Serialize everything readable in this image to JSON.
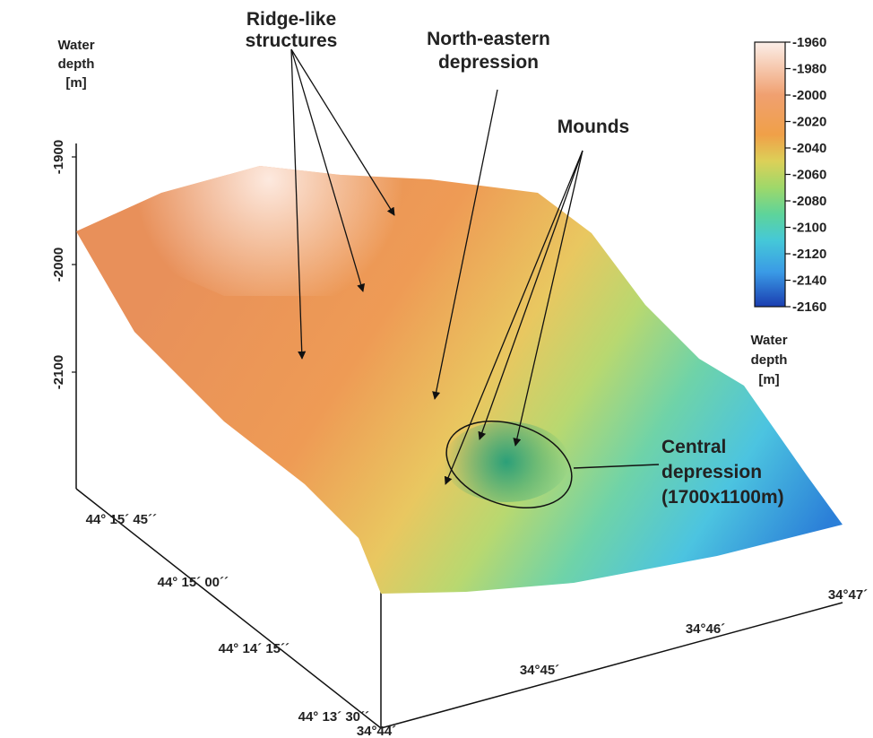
{
  "annotations": {
    "ridges": [
      "Ridge-like",
      "structures"
    ],
    "north_eastern_depression": [
      "North-eastern",
      "depression"
    ],
    "mounds": "Mounds",
    "central_depression": [
      "Central",
      "depression",
      "(1700x1100m)"
    ]
  },
  "depth_axis": {
    "title": [
      "Water",
      "depth",
      "[m]"
    ],
    "ticks": [
      -1900,
      -2000,
      -2100
    ]
  },
  "colorbar": {
    "title": [
      "Water",
      "depth",
      "[m]"
    ],
    "ticks": [
      -1960,
      -1980,
      -2000,
      -2020,
      -2040,
      -2060,
      -2080,
      -2100,
      -2120,
      -2140,
      -2160
    ]
  },
  "latitude_ticks": [
    "44° 15´ 45´´",
    "44° 15´ 00´´",
    "44° 14´ 15´´",
    "44° 13´ 30´´"
  ],
  "longitude_ticks": [
    "34°44´",
    "34°45´",
    "34°46´",
    "34°47´"
  ]
}
